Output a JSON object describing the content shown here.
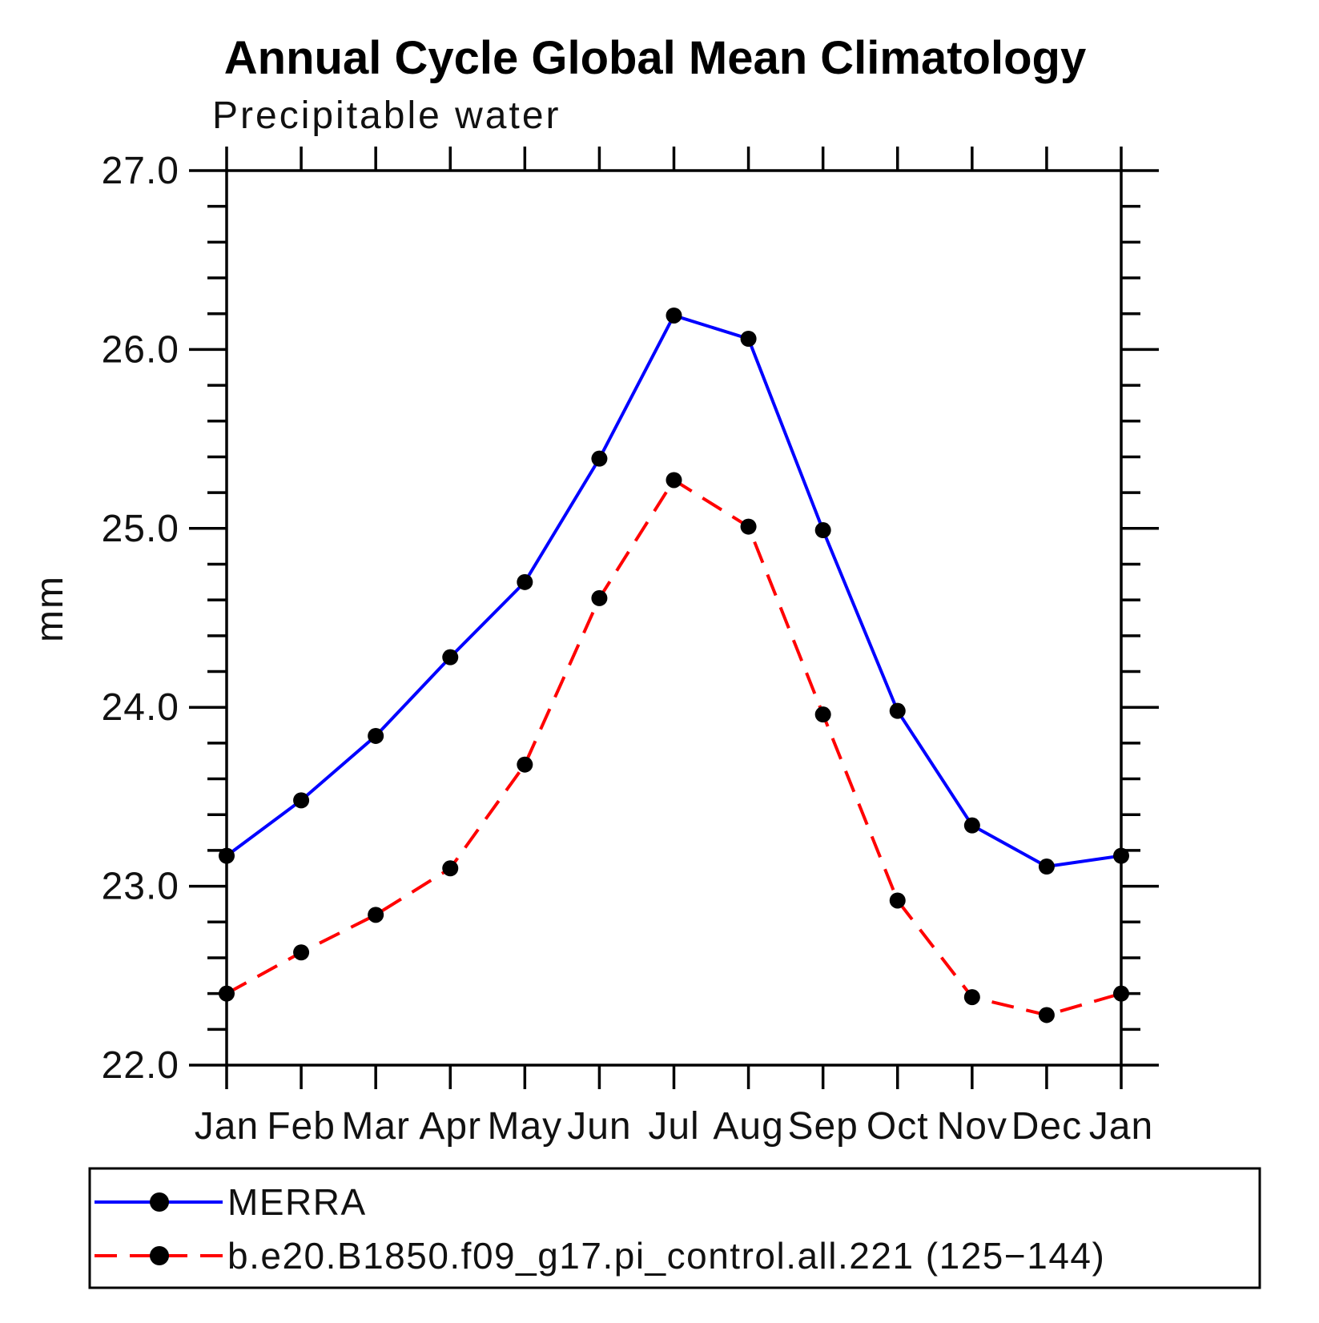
{
  "figure": {
    "title": "Annual Cycle Global Mean Climatology",
    "subtitle": "Precipitable water",
    "ylabel": "mm"
  },
  "chart_data": {
    "type": "line",
    "title": "Annual Cycle Global Mean Climatology",
    "subtitle": "Precipitable water",
    "ylabel": "mm",
    "x_categories": [
      "Jan",
      "Feb",
      "Mar",
      "Apr",
      "May",
      "Jun",
      "Jul",
      "Aug",
      "Sep",
      "Oct",
      "Nov",
      "Dec",
      "Jan"
    ],
    "ylim": [
      22.0,
      27.0
    ],
    "ytick_major": [
      22.0,
      23.0,
      24.0,
      25.0,
      26.0,
      27.0
    ],
    "ytick_labels": [
      "22.0",
      "23.0",
      "24.0",
      "25.0",
      "26.0",
      "27.0"
    ],
    "ytick_minor_step": 0.2,
    "grid": false,
    "axis_color": "#000000",
    "legend_position": "bottom-left-box",
    "series": [
      {
        "name": "MERRA",
        "line_color": "#0000ff",
        "line_style": "solid",
        "marker": "filled-circle",
        "marker_color": "#000000",
        "values": [
          23.17,
          23.48,
          23.84,
          24.28,
          24.7,
          25.39,
          26.19,
          26.06,
          24.99,
          23.98,
          23.34,
          23.11,
          23.17
        ]
      },
      {
        "name": "b.e20.B1850.f09_g17.pi_control.all.221 (125−144)",
        "line_color": "#ff0000",
        "line_style": "dashed",
        "marker": "filled-circle",
        "marker_color": "#000000",
        "values": [
          22.4,
          22.63,
          22.84,
          23.1,
          23.68,
          24.61,
          25.27,
          25.01,
          23.96,
          22.92,
          22.38,
          22.28,
          22.4
        ]
      }
    ]
  }
}
